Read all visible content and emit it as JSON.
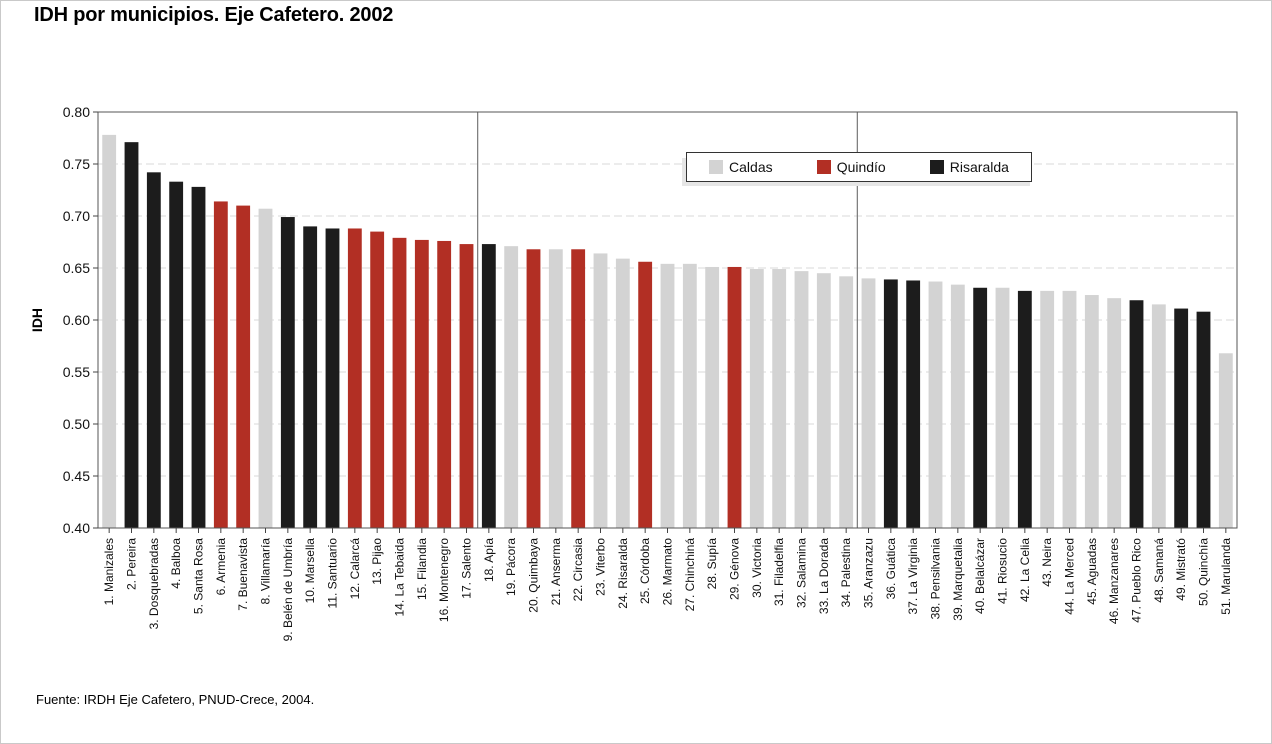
{
  "title": "IDH por municipios. Eje Cafetero. 2002",
  "source": {
    "label": "Fuente:",
    "text": "IRDH Eje Cafetero, PNUD-Crece, 2004."
  },
  "colors": {
    "Caldas": "#d3d3d3",
    "Quindío": "#b22f24",
    "Risaralda": "#1c1c1c",
    "grid": "#d9d9d9",
    "axis": "#444444"
  },
  "chart_data": {
    "type": "bar",
    "ylabel": "IDH",
    "xlabel": "",
    "ylim": [
      0.4,
      0.8
    ],
    "yticks": [
      "0.40",
      "0.45",
      "0.50",
      "0.55",
      "0.60",
      "0.65",
      "0.70",
      "0.75",
      "0.80"
    ],
    "grid": true,
    "legend": {
      "position": "top-right",
      "entries": [
        "Caldas",
        "Quindío",
        "Risaralda"
      ]
    },
    "categories": [
      "1. Manizales",
      "2. Pereira",
      "3. Dosquebradas",
      "4. Balboa",
      "5. Santa Rosa",
      "6. Armenia",
      "7. Buenavista",
      "8. Villamaría",
      "9. Belén de Umbría",
      "10. Marsella",
      "11. Santuario",
      "12. Calarcá",
      "13. Pijao",
      "14. La Tebaida",
      "15. Filandia",
      "16. Montenegro",
      "17. Salento",
      "18. Apía",
      "19. Pácora",
      "20. Quimbaya",
      "21. Anserma",
      "22. Circasia",
      "23. Viterbo",
      "24. Risaralda",
      "25. Córdoba",
      "26. Marmato",
      "27. Chinchiná",
      "28. Supía",
      "29. Génova",
      "30. Victoria",
      "31. Filadelfia",
      "32. Salamina",
      "33. La Dorada",
      "34. Palestina",
      "35. Aranzazu",
      "36. Guática",
      "37. La Virginia",
      "38. Pensilvania",
      "39. Marquetalia",
      "40. Belalcázar",
      "41. Riosucio",
      "42. La Celia",
      "43. Neira",
      "44. La Merced",
      "45. Aguadas",
      "46. Manzanares",
      "47. Pueblo Rico",
      "48. Samaná",
      "49. Mistrató",
      "50. Quinchía",
      "51. Marulanda"
    ],
    "values": [
      0.778,
      0.771,
      0.742,
      0.733,
      0.728,
      0.714,
      0.71,
      0.707,
      0.699,
      0.69,
      0.688,
      0.688,
      0.685,
      0.679,
      0.677,
      0.676,
      0.673,
      0.673,
      0.671,
      0.668,
      0.668,
      0.668,
      0.664,
      0.659,
      0.656,
      0.654,
      0.654,
      0.651,
      0.651,
      0.649,
      0.649,
      0.647,
      0.645,
      0.642,
      0.64,
      0.639,
      0.638,
      0.637,
      0.634,
      0.631,
      0.631,
      0.628,
      0.628,
      0.628,
      0.624,
      0.621,
      0.619,
      0.615,
      0.611,
      0.608,
      0.568
    ],
    "groups": [
      "Caldas",
      "Risaralda",
      "Risaralda",
      "Risaralda",
      "Risaralda",
      "Quindío",
      "Quindío",
      "Caldas",
      "Risaralda",
      "Risaralda",
      "Risaralda",
      "Quindío",
      "Quindío",
      "Quindío",
      "Quindío",
      "Quindío",
      "Quindío",
      "Risaralda",
      "Caldas",
      "Quindío",
      "Caldas",
      "Quindío",
      "Caldas",
      "Caldas",
      "Quindío",
      "Caldas",
      "Caldas",
      "Caldas",
      "Quindío",
      "Caldas",
      "Caldas",
      "Caldas",
      "Caldas",
      "Caldas",
      "Caldas",
      "Risaralda",
      "Risaralda",
      "Caldas",
      "Caldas",
      "Risaralda",
      "Caldas",
      "Risaralda",
      "Caldas",
      "Caldas",
      "Caldas",
      "Caldas",
      "Risaralda",
      "Caldas",
      "Risaralda",
      "Risaralda",
      "Caldas"
    ],
    "dividers_after": [
      17,
      34
    ]
  }
}
